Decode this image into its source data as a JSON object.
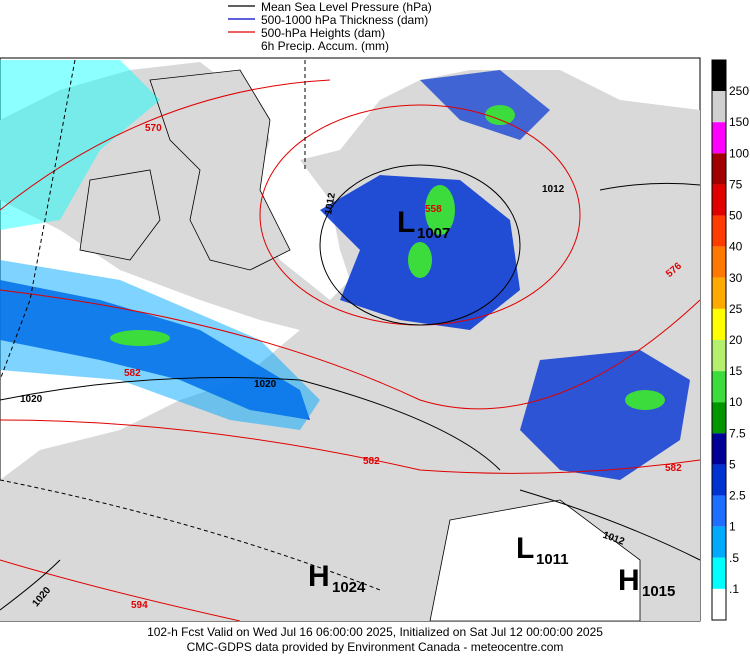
{
  "legend": [
    {
      "label": "Mean Sea Level Pressure (hPa)",
      "color": "#000000"
    },
    {
      "label": "500-1000 hPa Thickness (dam)",
      "color": "#0000c8"
    },
    {
      "label": "500-hPa Heights (dam)",
      "color": "#e00000"
    },
    {
      "label": "6h Precip. Accum. (mm)"
    }
  ],
  "colorbar": {
    "labels": [
      "250",
      "150",
      "100",
      "75",
      "50",
      "40",
      "30",
      "25",
      "20",
      "15",
      "10",
      "7.5",
      "5",
      "2.5",
      "1",
      ".5",
      ".1"
    ],
    "colors": [
      "#000000",
      "#d0d0d0",
      "#ff00ff",
      "#a00000",
      "#e00000",
      "#ff3c00",
      "#ff7800",
      "#ffaa00",
      "#ffff00",
      "#b4f06e",
      "#3cdc3c",
      "#009600",
      "#000096",
      "#0032d2",
      "#1e6eff",
      "#00aaff",
      "#00ffff",
      "#ffffff"
    ]
  },
  "contour_labels": [
    "570",
    "1012",
    "558",
    "1012",
    "576",
    "582",
    "1020",
    "1020",
    "582",
    "582",
    "1012",
    "1020",
    "594"
  ],
  "centers": [
    {
      "letter": "L",
      "value": "1007"
    },
    {
      "letter": "L",
      "value": "1011"
    },
    {
      "letter": "H",
      "value": "1024"
    },
    {
      "letter": "H",
      "value": "1015"
    }
  ],
  "footer": [
    "102-h Fcst Valid on Wed Jul 16 06:00:00 2025, Initialized on Sat Jul 12 00:00:00 2025",
    "CMC-GDPS data provided by Environment Canada - meteocentre.com"
  ]
}
